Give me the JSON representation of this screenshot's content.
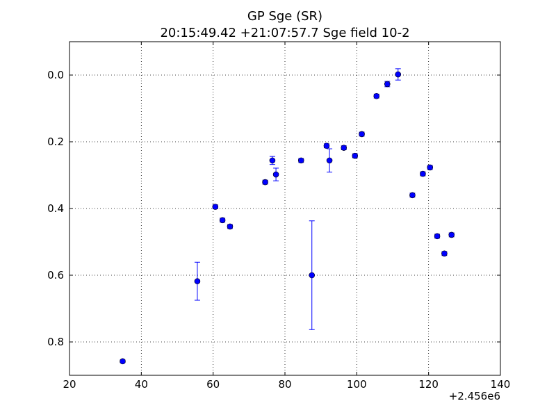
{
  "chart_data": {
    "type": "scatter",
    "title": "GP Sge (SR)",
    "subtitle": "20:15:49.42 +21:07:57.7 Sge field 10-2",
    "xlabel": "",
    "ylabel": "",
    "x_offset_label": "+2.456e6",
    "xlim": [
      20,
      140
    ],
    "ylim": [
      0.9,
      -0.1
    ],
    "y_inverted": true,
    "grid": true,
    "x_ticks": [
      20,
      40,
      60,
      80,
      100,
      120,
      140
    ],
    "x_tick_labels": [
      "20",
      "40",
      "60",
      "80",
      "100",
      "120",
      "140"
    ],
    "y_ticks": [
      0.0,
      0.2,
      0.4,
      0.6,
      0.8
    ],
    "y_tick_labels": [
      "0.0",
      "0.2",
      "0.4",
      "0.6",
      "0.8"
    ],
    "marker_color": "#0000ff",
    "errorbar_color": "#0000ff",
    "points": [
      {
        "x": 34.8,
        "y": 0.858,
        "err": 0.004
      },
      {
        "x": 55.6,
        "y": 0.618,
        "err": 0.057
      },
      {
        "x": 60.6,
        "y": 0.395,
        "err": 0.006
      },
      {
        "x": 62.6,
        "y": 0.435,
        "err": 0.006
      },
      {
        "x": 64.7,
        "y": 0.454,
        "err": 0.006
      },
      {
        "x": 74.5,
        "y": 0.321,
        "err": 0.006
      },
      {
        "x": 76.5,
        "y": 0.256,
        "err": 0.012
      },
      {
        "x": 77.5,
        "y": 0.298,
        "err": 0.019
      },
      {
        "x": 84.5,
        "y": 0.256,
        "err": 0.006
      },
      {
        "x": 87.5,
        "y": 0.6,
        "err": 0.163
      },
      {
        "x": 91.6,
        "y": 0.212,
        "err": 0.006
      },
      {
        "x": 92.4,
        "y": 0.256,
        "err": 0.035
      },
      {
        "x": 96.4,
        "y": 0.218,
        "err": 0.006
      },
      {
        "x": 99.5,
        "y": 0.242,
        "err": 0.006
      },
      {
        "x": 101.4,
        "y": 0.177,
        "err": 0.006
      },
      {
        "x": 105.5,
        "y": 0.063,
        "err": 0.006
      },
      {
        "x": 108.5,
        "y": 0.027,
        "err": 0.008
      },
      {
        "x": 111.5,
        "y": -0.002,
        "err": 0.017
      },
      {
        "x": 115.5,
        "y": 0.36,
        "err": 0.006
      },
      {
        "x": 118.4,
        "y": 0.296,
        "err": 0.006
      },
      {
        "x": 120.4,
        "y": 0.277,
        "err": 0.006
      },
      {
        "x": 122.4,
        "y": 0.483,
        "err": 0.006
      },
      {
        "x": 124.4,
        "y": 0.535,
        "err": 0.006
      },
      {
        "x": 126.4,
        "y": 0.479,
        "err": 0.006
      }
    ]
  }
}
